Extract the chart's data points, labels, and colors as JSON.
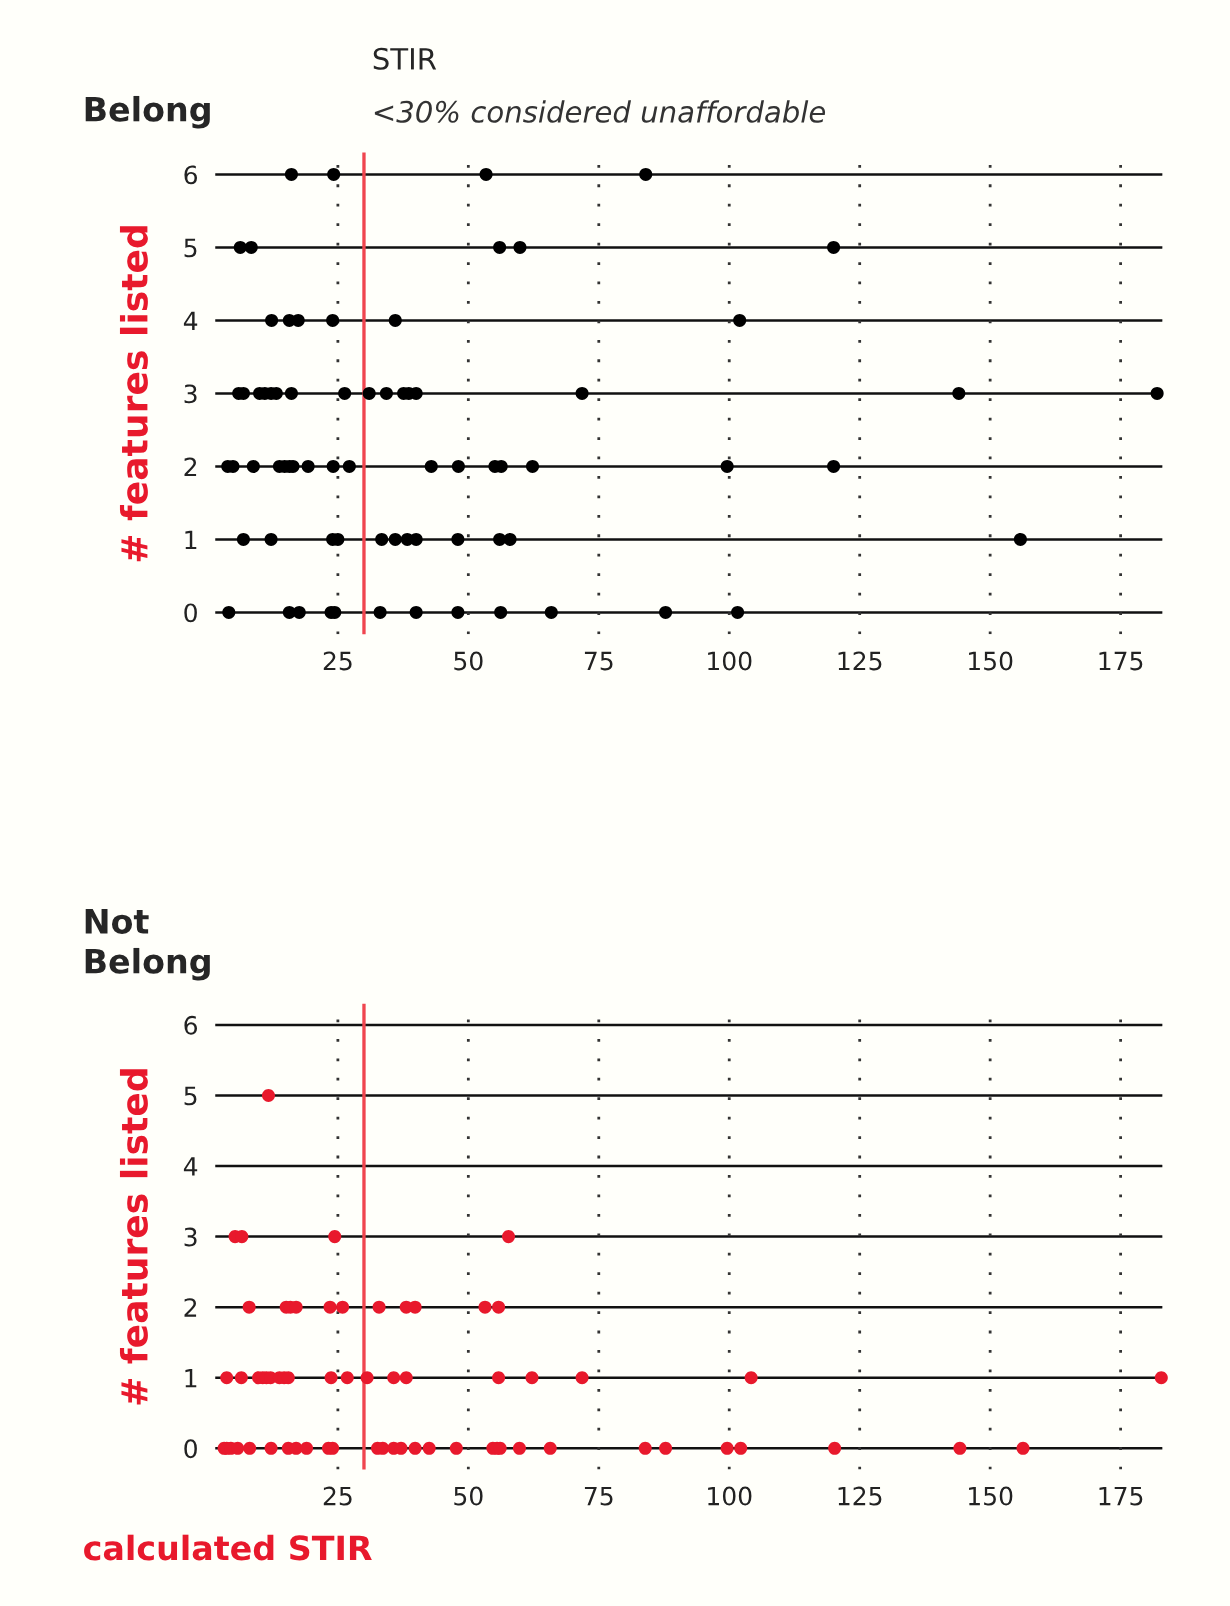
{
  "chart_data": [
    {
      "type": "scatter",
      "title": "Belong",
      "ylabel": "# features listed",
      "xlim": [
        1.5,
        183
      ],
      "xticks": [
        25,
        50,
        75,
        100,
        125,
        150,
        175
      ],
      "ylim": [
        -0.3,
        6.3
      ],
      "yticks": [
        0,
        1,
        2,
        3,
        4,
        5,
        6
      ],
      "grid": true,
      "marker": "circle",
      "legend": false,
      "ref_lines": [
        {
          "axis": "x",
          "value": 30,
          "label": "STIR",
          "color": "#f0454f"
        }
      ],
      "annotations": [
        "<30% considered unaffordable"
      ],
      "series": [
        {
          "color": "#000000",
          "x": [
            16.1,
            24.2,
            53.4,
            84.0,
            6.3,
            8.4,
            56.0,
            59.9,
            120,
            12.3,
            15.7,
            17.4,
            24.0,
            36.0,
            102,
            6.0,
            6.9,
            10.0,
            11.0,
            12.2,
            13.2,
            16.1,
            26.3,
            31.0,
            34.3,
            37.6,
            38.6,
            40.0,
            71.8,
            144,
            182,
            3.9,
            4.9,
            8.8,
            13.8,
            14.8,
            15.7,
            16.4,
            19.3,
            24.1,
            27.2,
            42.9,
            48.1,
            55.1,
            56.3,
            62.3,
            99.6,
            120,
            6.9,
            12.2,
            24.0,
            25.0,
            33.4,
            36.0,
            38.3,
            40.0,
            48.0,
            56.0,
            58.0,
            155.8,
            4.1,
            15.7,
            17.6,
            23.7,
            24.4,
            33.1,
            40.0,
            48.0,
            56.2,
            65.9,
            87.8,
            101.6
          ],
          "values": [
            6,
            6,
            6,
            6,
            5,
            5,
            5,
            5,
            5,
            4,
            4,
            4,
            4,
            4,
            4,
            3,
            3,
            3,
            3,
            3,
            3,
            3,
            3,
            3,
            3,
            3,
            3,
            3,
            3,
            3,
            3,
            2,
            2,
            2,
            2,
            2,
            2,
            2,
            2,
            2,
            2,
            2,
            2,
            2,
            2,
            2,
            2,
            2,
            1,
            1,
            1,
            1,
            1,
            1,
            1,
            1,
            1,
            1,
            1,
            1,
            0,
            0,
            0,
            0,
            0,
            0,
            0,
            0,
            0,
            0,
            0,
            0
          ]
        }
      ]
    },
    {
      "type": "scatter",
      "title": "Not\nBelong",
      "ylabel": "# features listed",
      "xlabel": "calculated STIR",
      "xlim": [
        1.5,
        183
      ],
      "xticks": [
        25,
        50,
        75,
        100,
        125,
        150,
        175
      ],
      "ylim": [
        -0.3,
        6.3
      ],
      "yticks": [
        0,
        1,
        2,
        3,
        4,
        5,
        6
      ],
      "grid": true,
      "marker": "circle",
      "legend": false,
      "ref_lines": [
        {
          "axis": "x",
          "value": 30,
          "color": "#f0454f"
        }
      ],
      "series": [
        {
          "color": "#e8192c",
          "x": [
            11.7,
            5.3,
            6.6,
            24.4,
            57.7,
            8.0,
            15.1,
            15.9,
            17.0,
            23.5,
            25.9,
            32.9,
            38.1,
            39.8,
            53.2,
            55.8,
            3.7,
            6.5,
            9.8,
            10.6,
            11.3,
            12.1,
            13.8,
            14.7,
            15.5,
            23.7,
            26.8,
            30.6,
            35.7,
            38.1,
            55.8,
            62.2,
            71.8,
            104.2,
            182.8,
            3.2,
            3.7,
            4.5,
            5.8,
            8.1,
            12.2,
            15.5,
            17.0,
            19.0,
            23.2,
            24.0,
            32.6,
            33.6,
            35.7,
            37.1,
            39.8,
            42.5,
            47.7,
            54.7,
            55.5,
            56.1,
            59.8,
            65.7,
            83.9,
            87.8,
            99.6,
            102.2,
            120.2,
            144.2,
            156.3
          ],
          "values": [
            5,
            3,
            3,
            3,
            3,
            2,
            2,
            2,
            2,
            2,
            2,
            2,
            2,
            2,
            2,
            2,
            1,
            1,
            1,
            1,
            1,
            1,
            1,
            1,
            1,
            1,
            1,
            1,
            1,
            1,
            1,
            1,
            1,
            1,
            1,
            0,
            0,
            0,
            0,
            0,
            0,
            0,
            0,
            0,
            0,
            0,
            0,
            0,
            0,
            0,
            0,
            0,
            0,
            0,
            0,
            0,
            0,
            0,
            0,
            0,
            0,
            0,
            0,
            0,
            0
          ]
        }
      ]
    }
  ]
}
